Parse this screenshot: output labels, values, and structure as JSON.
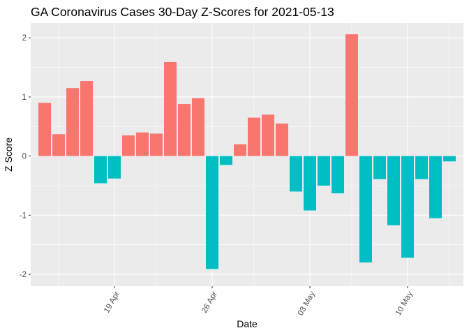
{
  "chart_data": {
    "type": "bar",
    "title": "GA Coronavirus Cases 30-Day Z-Scores for 2021-05-13",
    "xlabel": "Date",
    "ylabel": "Z Score",
    "ylim": [
      -2.2,
      2.25
    ],
    "y_ticks": [
      -2,
      -1,
      0,
      1,
      2
    ],
    "y_tick_labels": [
      "-2",
      "-1",
      "0",
      "1",
      "2"
    ],
    "x_ticks": [
      {
        "date": "2021-04-19",
        "label": "19 Apr"
      },
      {
        "date": "2021-04-26",
        "label": "26 Apr"
      },
      {
        "date": "2021-05-03",
        "label": "03 May"
      },
      {
        "date": "2021-05-10",
        "label": "10 May"
      }
    ],
    "x_minor_ticks": [
      "2021-04-15",
      "2021-04-22",
      "2021-04-29",
      "2021-05-06",
      "2021-05-13"
    ],
    "x_range": [
      "2021-04-13",
      "2021-05-14"
    ],
    "grid": true,
    "legend": "none",
    "colors": {
      "positive": "#F8766D",
      "negative": "#00BFC4",
      "panel": "#EBEBEB",
      "grid": "#FFFFFF"
    },
    "dates": [
      "2021-04-14",
      "2021-04-15",
      "2021-04-16",
      "2021-04-17",
      "2021-04-18",
      "2021-04-19",
      "2021-04-20",
      "2021-04-21",
      "2021-04-22",
      "2021-04-23",
      "2021-04-24",
      "2021-04-25",
      "2021-04-26",
      "2021-04-27",
      "2021-04-28",
      "2021-04-29",
      "2021-04-30",
      "2021-05-01",
      "2021-05-02",
      "2021-05-03",
      "2021-05-04",
      "2021-05-05",
      "2021-05-06",
      "2021-05-07",
      "2021-05-08",
      "2021-05-09",
      "2021-05-10",
      "2021-05-11",
      "2021-05-12",
      "2021-05-13"
    ],
    "values": [
      0.9,
      0.37,
      1.15,
      1.27,
      -0.46,
      -0.38,
      0.35,
      0.4,
      0.38,
      1.59,
      0.88,
      0.98,
      -1.91,
      -0.15,
      0.2,
      0.65,
      0.7,
      0.55,
      -0.6,
      -0.92,
      -0.5,
      -0.63,
      2.06,
      -1.8,
      -0.39,
      -1.17,
      -1.72,
      -0.39,
      -1.05,
      -0.09
    ]
  }
}
